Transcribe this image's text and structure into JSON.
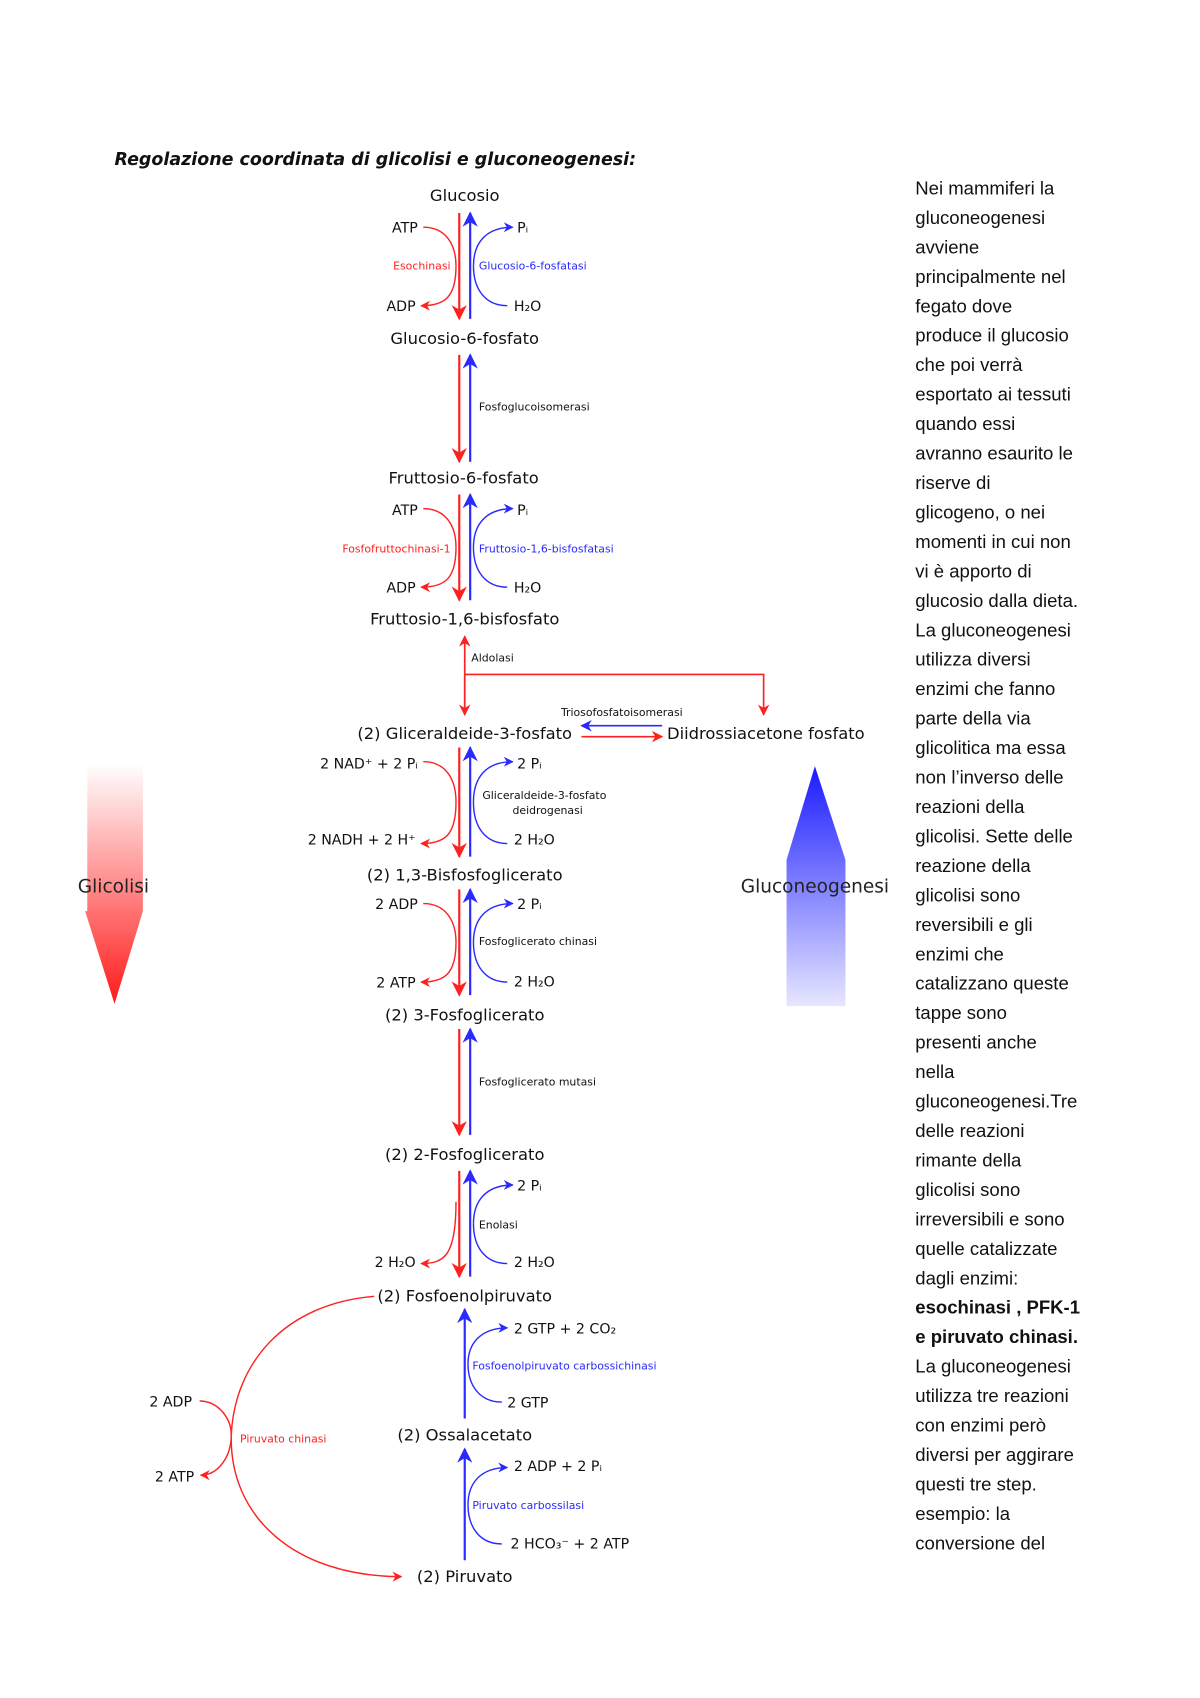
{
  "title": "Regolazione coordinata di glicolisi e gluconeogenesi:",
  "colors": {
    "glycolysis": "#ff2020",
    "gluconeogenesis": "#2a2aff"
  },
  "metabolites": [
    "Glucosio",
    "Glucosio-6-fosfato",
    "Fruttosio-6-fosfato",
    "Fruttosio-1,6-bisfosfato",
    "(2) Gliceraldeide-3-fosfato",
    "Diidrossiacetone fosfato",
    "(2) 1,3-Bisfosfoglicerato",
    "(2) 3-Fosfoglicerato",
    "(2) 2-Fosfoglicerato",
    "(2) Fosfoenolpiruvato",
    "(2) Ossalacetato",
    "(2) Piruvato"
  ],
  "enzymes": {
    "esochinasi": "Esochinasi",
    "g6pasi": "Glucosio-6-fosfatasi",
    "pgi": "Fosfoglucoisomerasi",
    "pfk1": "Fosfofruttochinasi-1",
    "fbpasi": "Fruttosio-1,6-bisfosfatasi",
    "aldolasi": "Aldolasi",
    "tpi": "Triosofosfatoisomerasi",
    "gapdh_1": "Gliceraldeide-3-fosfato",
    "gapdh_2": "deidrogenasi",
    "pgk": "Fosfoglicerato chinasi",
    "pgm": "Fosfoglicerato mutasi",
    "enolasi": "Enolasi",
    "pepck": "Fosfoenolpiruvato carbossichinasi",
    "pc": "Piruvato carbossilasi",
    "pk": "Piruvato chinasi"
  },
  "cofactors": {
    "s1": {
      "left_in": "ATP",
      "left_out": "ADP",
      "right_out": "Pᵢ",
      "right_in": "H₂O"
    },
    "s3": {
      "left_in": "ATP",
      "left_out": "ADP",
      "right_out": "Pᵢ",
      "right_in": "H₂O"
    },
    "s5": {
      "left_in": "2 NAD⁺ + 2 Pᵢ",
      "left_out": "2 NADH + 2 H⁺",
      "right_out": "2 Pᵢ",
      "right_in": "2 H₂O"
    },
    "s6": {
      "left_in": "2 ADP",
      "left_out": "2 ATP",
      "right_out": "2 Pᵢ",
      "right_in": "2 H₂O"
    },
    "s8": {
      "left_out": "2 H₂O",
      "right_out": "2 Pᵢ",
      "right_in": "2 H₂O"
    },
    "s9": {
      "right_out": "2 GTP + 2 CO₂",
      "right_in": "2 GTP"
    },
    "s10": {
      "right_out": "2 ADP + 2 Pᵢ",
      "right_in": "2 HCO₃⁻ + 2 ATP"
    },
    "pk": {
      "left_in": "2 ADP",
      "left_out": "2 ATP"
    }
  },
  "big_arrows": {
    "glycolysis": "Glicolisi",
    "gluconeogenesis": "Gluconeogenesi"
  },
  "side_text": [
    "Nei mammiferi la",
    "gluconeogenesi",
    "avviene",
    "principalmente nel",
    "fegato dove",
    "produce il glucosio",
    "che poi verrà",
    "esportato ai tessuti",
    "quando essi",
    "avranno esaurito le",
    "riserve di",
    "glicogeno, o nei",
    "momenti in cui non",
    "vi è apporto di",
    "glucosio dalla dieta.",
    "La gluconeogenesi",
    "utilizza diversi",
    "enzimi che fanno",
    "parte della via",
    "glicolitica ma essa",
    "non l’inverso delle",
    "reazioni della",
    "glicolisi. Sette delle",
    "reazione della",
    "glicolisi sono",
    "reversibili e gli",
    "enzimi che",
    "catalizzano queste",
    "tappe sono",
    "presenti anche",
    "nella",
    "gluconeogenesi.Tre",
    "delle reazioni",
    "rimante della",
    "glicolisi sono",
    "irreversibili e sono",
    "quelle catalizzate",
    "dagli enzimi:",
    "esochinasi , PFK-1",
    "e piruvato chinasi.",
    "La gluconeogenesi",
    "utilizza tre reazioni",
    "con enzimi però",
    "diversi per aggirare",
    "questi tre step.",
    "esempio: la",
    "conversione del"
  ],
  "side_text_bold_lines": [
    38,
    39
  ]
}
